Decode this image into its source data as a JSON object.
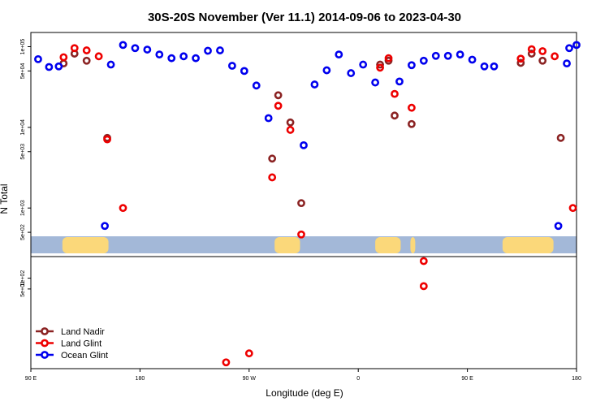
{
  "chart_data": {
    "type": "scatter",
    "title": "30S-20S November (Ver 11.1)   2014-09-06 to 2023-04-30",
    "xlabel": "Longitude (deg E)",
    "ylabel": "N Total",
    "x_ticks": [
      {
        "value": 90,
        "label": "90 E"
      },
      {
        "value": 180,
        "label": "180"
      },
      {
        "value": 270,
        "label": "90 W"
      },
      {
        "value": 360,
        "label": "0"
      },
      {
        "value": 450,
        "label": "90 E"
      },
      {
        "value": 540,
        "label": "180"
      }
    ],
    "xlim": [
      90,
      540
    ],
    "upper_panel": {
      "scale": "log",
      "ylim": [
        250,
        150000
      ],
      "y_ticks": [
        {
          "value": 500,
          "label": "5e+02"
        },
        {
          "value": 1000,
          "label": "1e+03"
        },
        {
          "value": 5000,
          "label": "5e+03"
        },
        {
          "value": 10000,
          "label": "1e+04"
        },
        {
          "value": 50000,
          "label": "5e+04"
        },
        {
          "value": 100000,
          "label": "1e+05"
        }
      ]
    },
    "lower_panel": {
      "scale": "log",
      "ylim": [
        0.3,
        400
      ],
      "y_ticks": [
        {
          "value": 50,
          "label": "5e+01"
        },
        {
          "value": 100,
          "label": "1e+02"
        }
      ]
    },
    "land_mask_longitudes": [
      [
        116,
        154
      ],
      [
        291,
        312
      ],
      [
        374,
        395
      ],
      [
        403,
        407
      ],
      [
        479,
        521
      ]
    ],
    "legend_position": "bottom-left",
    "series": [
      {
        "name": "Land Nadir",
        "color": "#8b2323",
        "points": [
          {
            "x": 117,
            "y": 62000,
            "panel": "upper"
          },
          {
            "x": 126,
            "y": 82000,
            "panel": "upper"
          },
          {
            "x": 136,
            "y": 67000,
            "panel": "upper"
          },
          {
            "x": 153,
            "y": 7400,
            "panel": "upper"
          },
          {
            "x": 289,
            "y": 4100,
            "panel": "upper"
          },
          {
            "x": 294,
            "y": 25000,
            "panel": "upper"
          },
          {
            "x": 304,
            "y": 11500,
            "panel": "upper"
          },
          {
            "x": 313,
            "y": 1150,
            "panel": "upper"
          },
          {
            "x": 378,
            "y": 60000,
            "panel": "upper"
          },
          {
            "x": 385,
            "y": 67000,
            "panel": "upper"
          },
          {
            "x": 390,
            "y": 14000,
            "panel": "upper"
          },
          {
            "x": 404,
            "y": 11000,
            "panel": "upper"
          },
          {
            "x": 494,
            "y": 63000,
            "panel": "upper"
          },
          {
            "x": 503,
            "y": 82000,
            "panel": "upper"
          },
          {
            "x": 512,
            "y": 67000,
            "panel": "upper"
          },
          {
            "x": 527,
            "y": 7400,
            "panel": "upper"
          }
        ]
      },
      {
        "name": "Land Glint",
        "color": "#ee0000",
        "points": [
          {
            "x": 117,
            "y": 74000,
            "panel": "upper"
          },
          {
            "x": 126,
            "y": 96000,
            "panel": "upper"
          },
          {
            "x": 136,
            "y": 90000,
            "panel": "upper"
          },
          {
            "x": 146,
            "y": 76000,
            "panel": "upper"
          },
          {
            "x": 153,
            "y": 7100,
            "panel": "upper"
          },
          {
            "x": 166,
            "y": 1000,
            "panel": "upper"
          },
          {
            "x": 289,
            "y": 2400,
            "panel": "upper"
          },
          {
            "x": 294,
            "y": 18500,
            "panel": "upper"
          },
          {
            "x": 304,
            "y": 9300,
            "panel": "upper"
          },
          {
            "x": 313,
            "y": 470,
            "panel": "upper"
          },
          {
            "x": 378,
            "y": 55000,
            "panel": "upper"
          },
          {
            "x": 385,
            "y": 72000,
            "panel": "upper"
          },
          {
            "x": 390,
            "y": 26000,
            "panel": "upper"
          },
          {
            "x": 404,
            "y": 17500,
            "panel": "upper"
          },
          {
            "x": 414,
            "y": 220,
            "panel": "upper"
          },
          {
            "x": 494,
            "y": 71000,
            "panel": "upper"
          },
          {
            "x": 503,
            "y": 93000,
            "panel": "upper"
          },
          {
            "x": 512,
            "y": 88000,
            "panel": "upper"
          },
          {
            "x": 522,
            "y": 76000,
            "panel": "upper"
          },
          {
            "x": 537,
            "y": 1000,
            "panel": "upper"
          },
          {
            "x": 251,
            "y": 0.45,
            "panel": "lower"
          },
          {
            "x": 270,
            "y": 0.8,
            "panel": "lower"
          },
          {
            "x": 414,
            "y": 60,
            "panel": "lower"
          }
        ]
      },
      {
        "name": "Ocean Glint",
        "color": "#0000ee",
        "points": [
          {
            "x": 96,
            "y": 70000,
            "panel": "upper"
          },
          {
            "x": 105,
            "y": 56000,
            "panel": "upper"
          },
          {
            "x": 113,
            "y": 57000,
            "panel": "upper"
          },
          {
            "x": 151,
            "y": 600,
            "panel": "upper"
          },
          {
            "x": 156,
            "y": 60000,
            "panel": "upper"
          },
          {
            "x": 166,
            "y": 105000,
            "panel": "upper"
          },
          {
            "x": 176,
            "y": 96000,
            "panel": "upper"
          },
          {
            "x": 186,
            "y": 92000,
            "panel": "upper"
          },
          {
            "x": 196,
            "y": 80000,
            "panel": "upper"
          },
          {
            "x": 206,
            "y": 72000,
            "panel": "upper"
          },
          {
            "x": 216,
            "y": 76000,
            "panel": "upper"
          },
          {
            "x": 226,
            "y": 72000,
            "panel": "upper"
          },
          {
            "x": 236,
            "y": 89000,
            "panel": "upper"
          },
          {
            "x": 246,
            "y": 90000,
            "panel": "upper"
          },
          {
            "x": 256,
            "y": 58000,
            "panel": "upper"
          },
          {
            "x": 266,
            "y": 50000,
            "panel": "upper"
          },
          {
            "x": 276,
            "y": 33000,
            "panel": "upper"
          },
          {
            "x": 286,
            "y": 13000,
            "panel": "upper"
          },
          {
            "x": 315,
            "y": 6000,
            "panel": "upper"
          },
          {
            "x": 324,
            "y": 34000,
            "panel": "upper"
          },
          {
            "x": 334,
            "y": 51000,
            "panel": "upper"
          },
          {
            "x": 344,
            "y": 80000,
            "panel": "upper"
          },
          {
            "x": 354,
            "y": 47000,
            "panel": "upper"
          },
          {
            "x": 364,
            "y": 60000,
            "panel": "upper"
          },
          {
            "x": 374,
            "y": 36000,
            "panel": "upper"
          },
          {
            "x": 394,
            "y": 37000,
            "panel": "upper"
          },
          {
            "x": 404,
            "y": 59000,
            "panel": "upper"
          },
          {
            "x": 414,
            "y": 67000,
            "panel": "upper"
          },
          {
            "x": 424,
            "y": 77000,
            "panel": "upper"
          },
          {
            "x": 434,
            "y": 77000,
            "panel": "upper"
          },
          {
            "x": 444,
            "y": 80000,
            "panel": "upper"
          },
          {
            "x": 454,
            "y": 69000,
            "panel": "upper"
          },
          {
            "x": 464,
            "y": 57000,
            "panel": "upper"
          },
          {
            "x": 472,
            "y": 57000,
            "panel": "upper"
          },
          {
            "x": 525,
            "y": 600,
            "panel": "upper"
          },
          {
            "x": 532,
            "y": 62000,
            "panel": "upper"
          },
          {
            "x": 540,
            "y": 105000,
            "panel": "upper"
          },
          {
            "x": 534,
            "y": 96000,
            "panel": "upper"
          }
        ]
      }
    ]
  }
}
